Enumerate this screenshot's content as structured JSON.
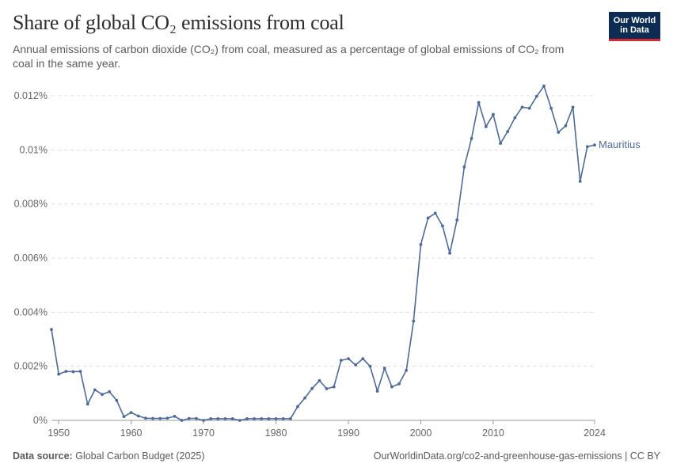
{
  "header": {
    "title": "Share of global CO₂ emissions from coal",
    "subtitle": "Annual emissions of carbon dioxide (CO₂) from coal, measured as a percentage of global emissions of CO₂ from coal in the same year."
  },
  "logo": {
    "line1": "Our World",
    "line2": "in Data",
    "bg": "#0c2c54",
    "accent": "#d62739"
  },
  "footer": {
    "source_label": "Data source:",
    "source_text": "Global Carbon Budget (2025)",
    "url_text": "OurWorldinData.org/co2-and-greenhouse-gas-emissions | CC BY"
  },
  "chart_data": {
    "type": "line",
    "title": "Share of global CO₂ emissions from coal",
    "xlim": [
      1949,
      2024
    ],
    "ylim": [
      0,
      0.012
    ],
    "x_ticks": [
      1950,
      1960,
      1970,
      1980,
      1990,
      2000,
      2010,
      2024
    ],
    "y_ticks": [
      0,
      0.002,
      0.004,
      0.006,
      0.008,
      0.01,
      0.012
    ],
    "y_tick_labels": [
      "0%",
      "0.002%",
      "0.004%",
      "0.006%",
      "0.008%",
      "0.01%",
      "0.012%"
    ],
    "grid": true,
    "series": [
      {
        "name": "Mauritius",
        "color": "#4c6a9c",
        "x": [
          1949,
          1950,
          1951,
          1952,
          1953,
          1954,
          1955,
          1956,
          1957,
          1958,
          1959,
          1960,
          1961,
          1962,
          1963,
          1964,
          1965,
          1966,
          1967,
          1968,
          1969,
          1970,
          1971,
          1972,
          1973,
          1974,
          1975,
          1976,
          1977,
          1978,
          1979,
          1980,
          1981,
          1982,
          1983,
          1984,
          1985,
          1986,
          1987,
          1988,
          1989,
          1990,
          1991,
          1992,
          1993,
          1994,
          1995,
          1996,
          1997,
          1998,
          1999,
          2000,
          2001,
          2002,
          2003,
          2004,
          2005,
          2006,
          2007,
          2008,
          2009,
          2010,
          2011,
          2012,
          2013,
          2014,
          2015,
          2016,
          2017,
          2018,
          2019,
          2020,
          2021,
          2022,
          2023,
          2024
        ],
        "values": [
          0.00336,
          0.00171,
          0.00181,
          0.0018,
          0.00181,
          0.0006,
          0.00113,
          0.00096,
          0.00106,
          0.00074,
          0.00014,
          0.00029,
          0.00016,
          8e-05,
          7e-05,
          7e-05,
          8e-05,
          0.00015,
          0.0,
          7e-05,
          7e-05,
          0.0,
          6e-05,
          6e-05,
          6e-05,
          6e-05,
          0.0,
          6e-05,
          6e-05,
          6e-05,
          6e-05,
          6e-05,
          6e-05,
          6e-05,
          0.00051,
          0.00083,
          0.00118,
          0.00147,
          0.00117,
          0.00124,
          0.00222,
          0.00228,
          0.00205,
          0.00228,
          0.002,
          0.00108,
          0.00193,
          0.00124,
          0.00135,
          0.00185,
          0.00367,
          0.0065,
          0.00748,
          0.00766,
          0.00719,
          0.00618,
          0.00741,
          0.00937,
          0.01042,
          0.01175,
          0.01086,
          0.01131,
          0.01024,
          0.01068,
          0.01119,
          0.01158,
          0.01154,
          0.01198,
          0.01236,
          0.01154,
          0.01065,
          0.01089,
          0.01158,
          0.00884,
          0.01012,
          0.01018
        ]
      }
    ]
  }
}
